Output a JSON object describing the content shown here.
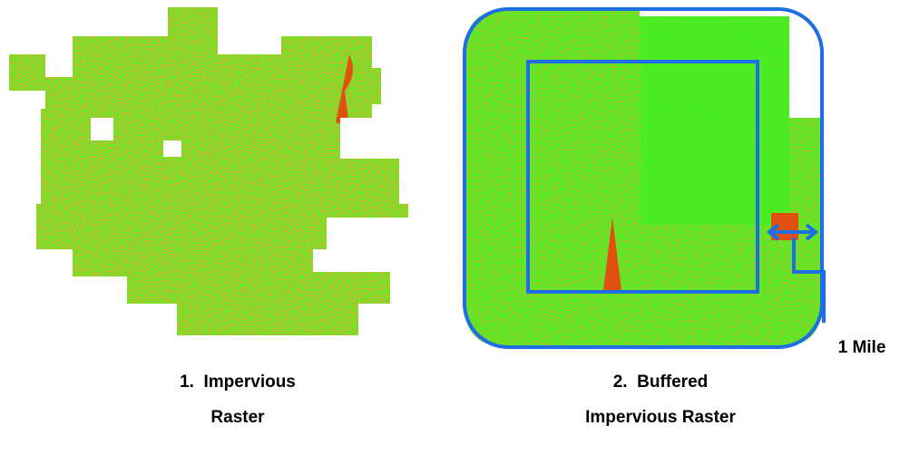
{
  "panels": [
    {
      "caption": [
        "1.  Impervious",
        "Raster"
      ]
    },
    {
      "caption": [
        "2.  Buffered",
        "Impervious Raster"
      ]
    }
  ],
  "annotation": "1 Mile"
}
